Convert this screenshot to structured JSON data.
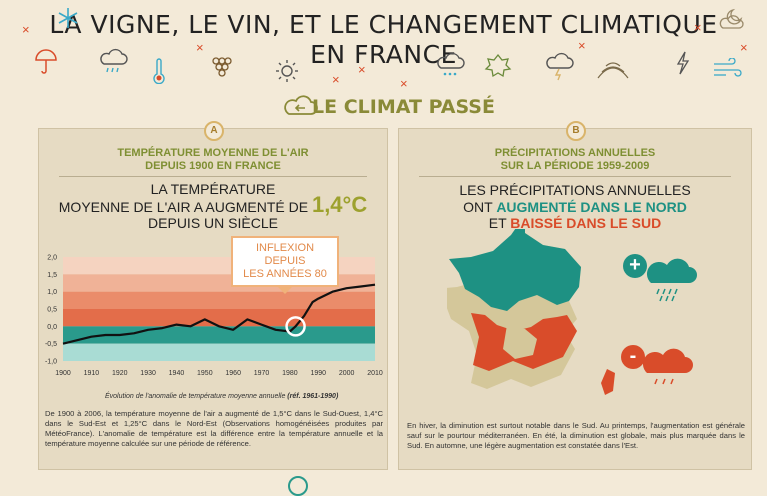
{
  "header": {
    "title_line1": "LA VIGNE, LE VIN, ET LE CHANGEMENT CLIMATIQUE",
    "title_line2": "EN FRANCE",
    "icons": [
      "snowflake-icon",
      "moon-cloud-icon",
      "umbrella-icon",
      "rain-cloud-icon",
      "thermometer-icon",
      "grapes-icon",
      "sun-icon",
      "storm-cloud-icon",
      "vine-leaf-icon",
      "storm-cloud-icon",
      "vineyard-hill-icon",
      "lightning-icon",
      "wind-icon"
    ]
  },
  "section": {
    "title": "LE CLIMAT PASSÉ",
    "icon": "cloud-arrow-icon"
  },
  "panel_a": {
    "badge": "A",
    "heading_line1": "TEMPÉRATURE MOYENNE DE L'AIR",
    "heading_line2": "DEPUIS 1900 EN FRANCE",
    "statement_line1": "LA TEMPÉRATURE",
    "statement_line2": "MOYENNE DE L'AIR A AUGMENTÉ DE",
    "statement_highlight": "1,4°C",
    "statement_line3": "DEPUIS UN SIÈCLE",
    "callout_line1": "INFLEXION DEPUIS",
    "callout_line2": "LES ANNÉES 80",
    "caption": "Évolution de l'anomalie de température moyenne annuelle",
    "caption_ref": "(réf. 1961-1990)",
    "body": "De 1900 à 2006, la température moyenne de l'air a augmenté de 1,5°C dans le Sud-Ouest, 1,4°C dans le Sud-Est et 1,25°C dans le Nord-Est (Observations homogénéisées produites par MétéoFrance). L'anomalie de température est la différence entre la température annuelle et la température moyenne calculée sur une période de référence."
  },
  "chart_data": {
    "type": "line",
    "x": [
      1900,
      1905,
      1910,
      1915,
      1920,
      1925,
      1930,
      1935,
      1940,
      1945,
      1950,
      1955,
      1960,
      1965,
      1970,
      1975,
      1980,
      1982,
      1985,
      1988,
      1990,
      1995,
      2000,
      2005,
      2010
    ],
    "values": [
      -0.5,
      -0.4,
      -0.3,
      -0.25,
      -0.25,
      -0.2,
      -0.1,
      -0.05,
      0.05,
      0.0,
      0.2,
      0.0,
      -0.1,
      0.2,
      0.05,
      -0.1,
      -0.15,
      0.0,
      0.3,
      0.7,
      0.8,
      1.0,
      1.1,
      1.15,
      1.2
    ],
    "x_ticks": [
      "1900",
      "1910",
      "1920",
      "1930",
      "1940",
      "1950",
      "1960",
      "1970",
      "1980",
      "1990",
      "2000",
      "2010"
    ],
    "y_ticks": [
      "2,0",
      "1,5",
      "1,0",
      "0,5",
      "0,0",
      "-0,5",
      "-1,0"
    ],
    "ylim": [
      -1.0,
      2.0
    ],
    "xlim": [
      1900,
      2010
    ],
    "band_colors": [
      "#f5d3c0",
      "#f0b297",
      "#ea8c6a",
      "#e36d4a",
      "#2a9a8c",
      "#a9dcd4"
    ]
  },
  "panel_b": {
    "badge": "B",
    "heading_line1": "PRÉCIPITATIONS ANNUELLES",
    "heading_line2": "SUR LA PÉRIODE 1959-2009",
    "statement_line1": "LES PRÉCIPITATIONS ANNUELLES",
    "statement_line2a": "ONT",
    "statement_line2b": "AUGMENTÉ DANS LE NORD",
    "statement_line3a": "ET",
    "statement_line3b": "BAISSÉ DANS LE SUD",
    "plus_sign": "+",
    "minus_sign": "-",
    "body": "En hiver, la diminution est surtout notable dans le Sud. Au printemps, l'augmentation est générale sauf sur le pourtour méditerranéen. En été, la diminution est globale, mais plus marquée dans le Sud. En automne, une légère augmentation est constatée dans l'Est."
  },
  "colors": {
    "green_accent": "#1e9183",
    "orange_accent": "#d94c2a",
    "olive_title": "#8a8a38",
    "panel_bg": "#e6dbc3"
  }
}
